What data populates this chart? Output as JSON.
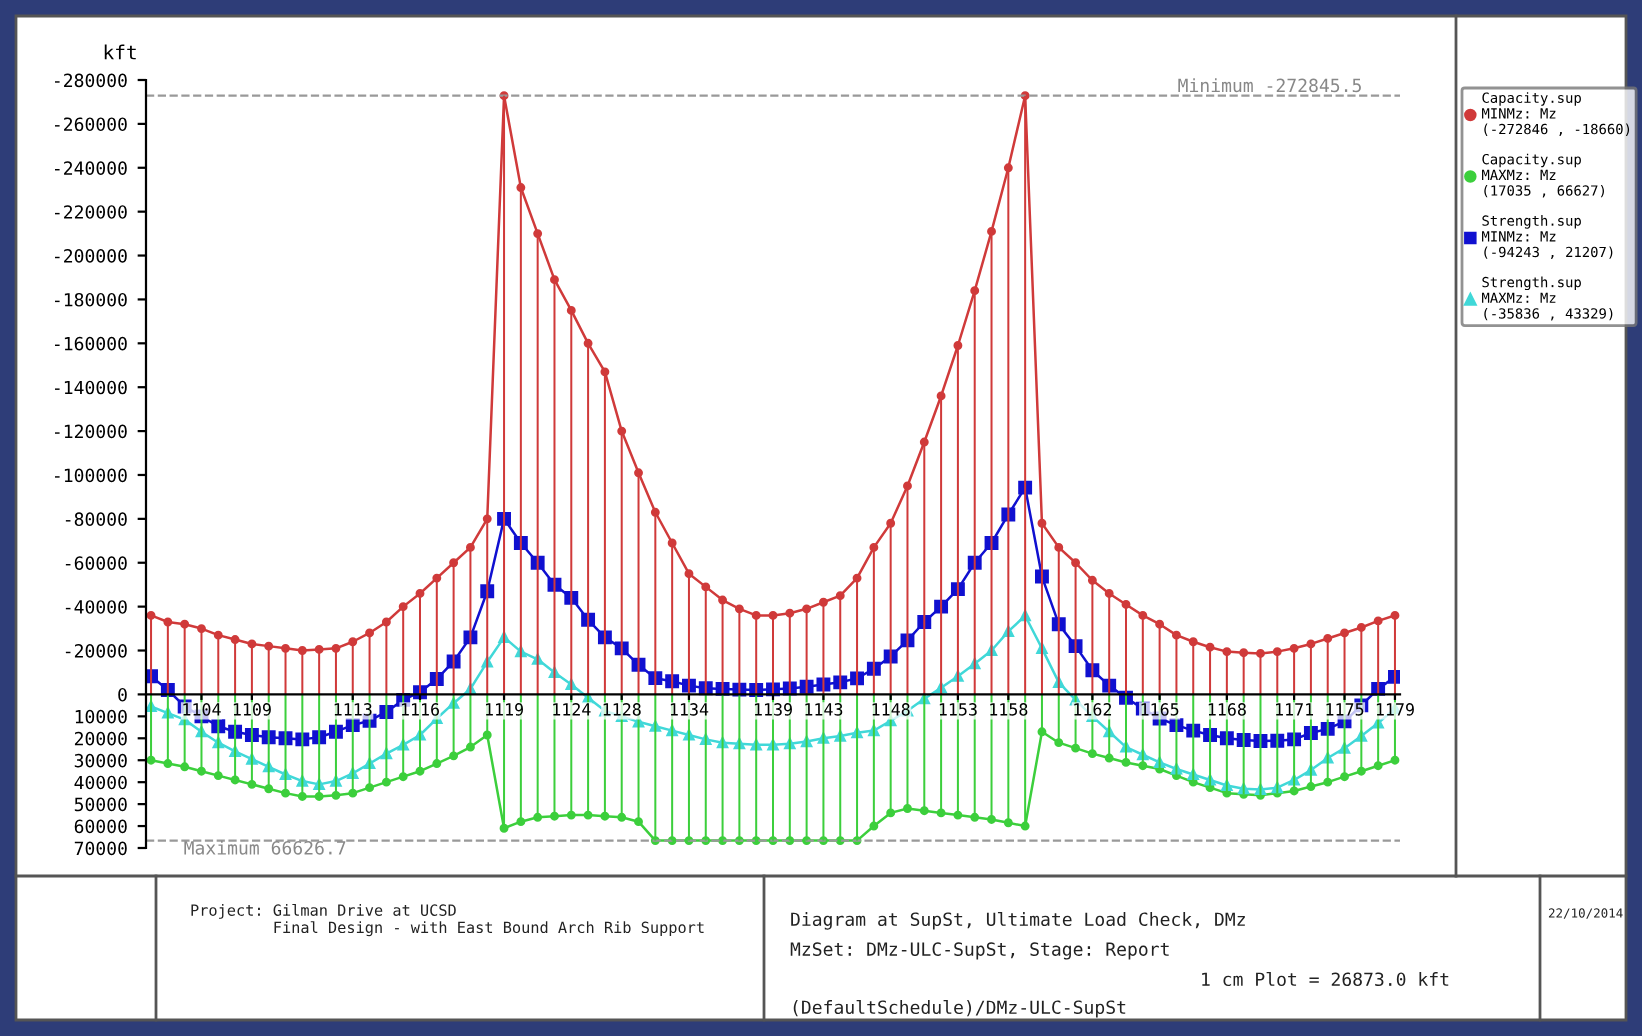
{
  "chart_data": {
    "type": "line",
    "ylabel": "kft",
    "categories": [
      null,
      null,
      null,
      "1104",
      null,
      null,
      "1109",
      null,
      null,
      null,
      null,
      null,
      "1113",
      null,
      null,
      null,
      "1116",
      null,
      null,
      null,
      null,
      "1119",
      null,
      null,
      null,
      "1124",
      null,
      null,
      "1128",
      null,
      null,
      null,
      "1134",
      null,
      null,
      null,
      null,
      "1139",
      null,
      null,
      "1143",
      null,
      null,
      null,
      "1148",
      null,
      null,
      null,
      "1153",
      null,
      null,
      "1158",
      null,
      null,
      null,
      null,
      "1162",
      null,
      null,
      null,
      "1165",
      null,
      null,
      null,
      "1168",
      null,
      null,
      null,
      "1171",
      null,
      null,
      "1175",
      null,
      null,
      "1179"
    ],
    "ylim": [
      70000,
      -280000
    ],
    "yticks": [
      -280000,
      -260000,
      -240000,
      -220000,
      -200000,
      -180000,
      -160000,
      -140000,
      -120000,
      -100000,
      -80000,
      -60000,
      -40000,
      -20000,
      0,
      10000,
      20000,
      30000,
      40000,
      50000,
      60000,
      70000
    ],
    "legend": "right",
    "series": [
      {
        "name": "Capacity.sup\nMINMz: Mz\n(-272846 , -18660)",
        "color": "#d03a3a",
        "marker": "circle",
        "values": [
          -36000,
          -33000,
          -32000,
          -30000,
          -27000,
          -25000,
          -23000,
          -22000,
          -21000,
          -20000,
          -20500,
          -21000,
          -24000,
          -28000,
          -33000,
          -40000,
          -46000,
          -53000,
          -60000,
          -67000,
          -80000,
          -272846,
          -231000,
          -210000,
          -189000,
          -175000,
          -160000,
          -147000,
          -120000,
          -101000,
          -83000,
          -69000,
          -55000,
          -49000,
          -43000,
          -39000,
          -36000,
          -36000,
          -37000,
          -39000,
          -42000,
          -45000,
          -53000,
          -67000,
          -78000,
          -95000,
          -115000,
          -136000,
          -159000,
          -184000,
          -211000,
          -240000,
          -272846,
          -78000,
          -67000,
          -60000,
          -52000,
          -46000,
          -41000,
          -36000,
          -32000,
          -27000,
          -24000,
          -21500,
          -19500,
          -19000,
          -18660,
          -19500,
          -21000,
          -23000,
          -25500,
          -28000,
          -30500,
          -33500,
          -36000
        ]
      },
      {
        "type": "bar",
        "color": "#d03a3a",
        "values": [
          -36000,
          -33000,
          -32000,
          -30000,
          -27000,
          -25000,
          -23000,
          -22000,
          -21000,
          -20000,
          -20500,
          -21000,
          -24000,
          -28000,
          -33000,
          -40000,
          -46000,
          -53000,
          -60000,
          -67000,
          -80000,
          -272846,
          -231000,
          -210000,
          -189000,
          -175000,
          -160000,
          -147000,
          -120000,
          -101000,
          -83000,
          -69000,
          -55000,
          -49000,
          -43000,
          -39000,
          -36000,
          -36000,
          -37000,
          -39000,
          -42000,
          -45000,
          -53000,
          -67000,
          -78000,
          -95000,
          -115000,
          -136000,
          -159000,
          -184000,
          -211000,
          -240000,
          -272846,
          -78000,
          -67000,
          -60000,
          -52000,
          -46000,
          -41000,
          -36000,
          -32000,
          -27000,
          -24000,
          -21500,
          -19500,
          -19000,
          -18660,
          -19500,
          -21000,
          -23000,
          -25500,
          -28000,
          -30500,
          -33500,
          -36000
        ]
      },
      {
        "type": "bar",
        "color": "#3ccf3c",
        "values": [
          30000,
          31500,
          33000,
          35000,
          37000,
          39000,
          41000,
          43000,
          45000,
          46500,
          46500,
          46000,
          45000,
          42500,
          40000,
          37500,
          35000,
          31500,
          28000,
          24000,
          18500,
          61000,
          58000,
          56000,
          55500,
          55000,
          55000,
          55500,
          56000,
          58000,
          66627,
          66627,
          66627,
          66627,
          66627,
          66627,
          66627,
          66627,
          66627,
          66627,
          66627,
          66627,
          66627,
          60000,
          54000,
          52000,
          53000,
          54000,
          55000,
          56000,
          57000,
          58500,
          60000,
          17035,
          22000,
          24500,
          27000,
          29000,
          31000,
          32500,
          34000,
          37000,
          40000,
          42500,
          45000,
          45500,
          46000,
          45000,
          44000,
          42000,
          40000,
          37500,
          35000,
          32500,
          30000
        ]
      },
      {
        "name": "Capacity.sup\nMAXMz: Mz\n(17035 , 66627)",
        "color": "#3ccf3c",
        "marker": "circle",
        "values": [
          30000,
          31500,
          33000,
          35000,
          37000,
          39000,
          41000,
          43000,
          45000,
          46500,
          46500,
          46000,
          45000,
          42500,
          40000,
          37500,
          35000,
          31500,
          28000,
          24000,
          18500,
          61000,
          58000,
          56000,
          55500,
          55000,
          55000,
          55500,
          56000,
          58000,
          66627,
          66627,
          66627,
          66627,
          66627,
          66627,
          66627,
          66627,
          66627,
          66627,
          66627,
          66627,
          66627,
          60000,
          54000,
          52000,
          53000,
          54000,
          55000,
          56000,
          57000,
          58500,
          60000,
          17035,
          22000,
          24500,
          27000,
          29000,
          31000,
          32500,
          34000,
          37000,
          40000,
          42500,
          45000,
          45500,
          46000,
          45000,
          44000,
          42000,
          40000,
          37500,
          35000,
          32500,
          30000
        ]
      },
      {
        "name": "Strength.sup\nMINMz: Mz\n(-94243 , 21207)",
        "type": "line",
        "color": "#1010d0",
        "marker": "square",
        "values": [
          -8300,
          -2000,
          5500,
          10000,
          14500,
          17000,
          18500,
          19500,
          20000,
          20500,
          19500,
          17000,
          14000,
          12000,
          8000,
          2500,
          -1000,
          -7000,
          -15000,
          -26000,
          -47000,
          -80000,
          -69000,
          -60000,
          -50000,
          -44000,
          -34000,
          -26000,
          -21000,
          -13500,
          -7400,
          -6000,
          -4000,
          -2800,
          -2500,
          -2200,
          -2000,
          -2300,
          -2700,
          -3500,
          -4500,
          -5500,
          -7300,
          -11700,
          -17300,
          -24600,
          -33000,
          -40000,
          -48000,
          -60000,
          -69000,
          -82000,
          -94243,
          -53700,
          -32000,
          -22000,
          -11000,
          -4000,
          1500,
          6500,
          11000,
          14000,
          16500,
          18500,
          20000,
          20800,
          21207,
          21100,
          20500,
          17600,
          15700,
          12300,
          5000,
          -2500,
          -8000
        ]
      },
      {
        "name": "Strength.sup\nMAXMz: Mz\n(-35836 , 43329)",
        "type": "line",
        "color": "#40d8d8",
        "marker": "triangle",
        "values": [
          5500,
          8500,
          11500,
          17000,
          22000,
          26000,
          29500,
          33000,
          36500,
          39500,
          41000,
          39500,
          36000,
          31500,
          27000,
          23000,
          18500,
          11000,
          4000,
          -2500,
          -14800,
          -26000,
          -19500,
          -16000,
          -10000,
          -4500,
          1500,
          7500,
          10000,
          12500,
          14500,
          16500,
          18500,
          20500,
          22000,
          22500,
          23000,
          23000,
          22500,
          21500,
          20000,
          19000,
          17500,
          16500,
          12000,
          7500,
          2000,
          -3000,
          -8300,
          -14000,
          -20000,
          -28700,
          -35836,
          -21000,
          -5500,
          2500,
          10000,
          17000,
          24000,
          27500,
          31000,
          34000,
          36500,
          39000,
          41500,
          43000,
          43329,
          42500,
          39000,
          34500,
          29000,
          24500,
          19000,
          13000,
          6500
        ]
      }
    ],
    "ref_lines": [
      {
        "axis": "y",
        "value": -272845.5,
        "label": "Minimum -272845.5",
        "color": "#999999",
        "line_style": "dashed"
      },
      {
        "axis": "y",
        "value": 66626.7,
        "label": "Maximum 66626.7",
        "color": "#999999",
        "line_style": "dashed"
      }
    ],
    "annotations": [
      "Project: Gilman Drive at UCSD\n         Final Design - with East Bound Arch Rib Support",
      "Diagram at SupSt, Ultimate Load Check, DMz",
      "MzSet: DMz-ULC-SupSt, Stage: Report",
      "(DefaultSchedule)/DMz-ULC-SupSt",
      "1 cm Plot = 26873.0 kft",
      "22/10/2014"
    ]
  }
}
